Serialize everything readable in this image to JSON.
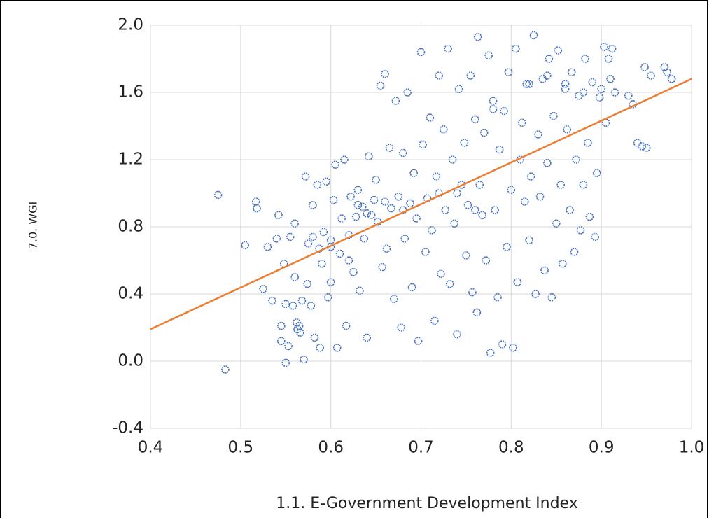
{
  "chart_data": {
    "type": "scatter",
    "x_label": "1.1. E-Government Development Index",
    "y_label": "7.0. WGI",
    "xlim": [
      0.4,
      1.0
    ],
    "ylim": [
      -0.4,
      2.0
    ],
    "xticks": [
      0.4,
      0.5,
      0.6,
      0.7,
      0.8,
      0.9,
      {
        "value": 1.0,
        "label": "1.0"
      }
    ],
    "yticks": [
      -0.4,
      {
        "value": 0,
        "label": "0.0"
      },
      0.4,
      0.8,
      1.2,
      1.6,
      {
        "value": 2.0,
        "label": "2.0"
      }
    ],
    "grid": true,
    "series": [
      {
        "color": "#4472c4",
        "x": [
          0.475,
          0.483,
          0.505,
          0.517,
          0.518,
          0.525,
          0.53,
          0.535,
          0.54,
          0.542,
          0.545,
          0.545,
          0.548,
          0.55,
          0.55,
          0.553,
          0.555,
          0.558,
          0.56,
          0.562,
          0.563,
          0.565,
          0.566,
          0.568,
          0.57,
          0.572,
          0.574,
          0.575,
          0.578,
          0.58,
          0.582,
          0.585,
          0.587,
          0.588,
          0.59,
          0.592,
          0.595,
          0.597,
          0.6,
          0.6,
          0.603,
          0.605,
          0.607,
          0.61,
          0.612,
          0.615,
          0.617,
          0.62,
          0.622,
          0.625,
          0.628,
          0.63,
          0.632,
          0.635,
          0.637,
          0.64,
          0.642,
          0.645,
          0.648,
          0.65,
          0.652,
          0.655,
          0.657,
          0.66,
          0.662,
          0.665,
          0.667,
          0.67,
          0.672,
          0.675,
          0.678,
          0.68,
          0.682,
          0.685,
          0.688,
          0.69,
          0.692,
          0.695,
          0.697,
          0.7,
          0.702,
          0.705,
          0.707,
          0.71,
          0.712,
          0.715,
          0.717,
          0.72,
          0.722,
          0.725,
          0.727,
          0.73,
          0.732,
          0.735,
          0.737,
          0.74,
          0.742,
          0.745,
          0.748,
          0.75,
          0.752,
          0.755,
          0.757,
          0.76,
          0.762,
          0.763,
          0.765,
          0.768,
          0.77,
          0.772,
          0.775,
          0.777,
          0.78,
          0.782,
          0.785,
          0.787,
          0.79,
          0.792,
          0.795,
          0.797,
          0.8,
          0.802,
          0.805,
          0.807,
          0.81,
          0.812,
          0.815,
          0.817,
          0.82,
          0.822,
          0.825,
          0.827,
          0.83,
          0.832,
          0.835,
          0.837,
          0.84,
          0.842,
          0.845,
          0.847,
          0.85,
          0.852,
          0.855,
          0.857,
          0.86,
          0.862,
          0.865,
          0.867,
          0.87,
          0.872,
          0.875,
          0.877,
          0.88,
          0.882,
          0.885,
          0.887,
          0.89,
          0.893,
          0.895,
          0.898,
          0.9,
          0.903,
          0.905,
          0.908,
          0.91,
          0.912,
          0.915,
          0.93,
          0.935,
          0.94,
          0.945,
          0.948,
          0.95,
          0.955,
          0.97,
          0.973,
          0.978,
          0.56,
          0.62,
          0.64,
          0.66,
          0.68,
          0.72,
          0.74,
          0.76,
          0.78,
          0.82,
          0.84,
          0.86,
          0.88,
          0.58,
          0.6,
          0.63
        ],
        "values": [
          0.99,
          -0.05,
          0.69,
          0.95,
          0.91,
          0.43,
          0.68,
          0.36,
          0.73,
          0.87,
          0.21,
          0.12,
          0.58,
          -0.01,
          0.34,
          0.09,
          0.74,
          0.33,
          0.82,
          0.23,
          0.19,
          0.21,
          0.17,
          0.36,
          0.01,
          1.1,
          0.46,
          0.7,
          0.33,
          0.93,
          0.14,
          1.05,
          0.67,
          0.08,
          0.58,
          0.77,
          1.07,
          0.38,
          0.72,
          0.47,
          0.96,
          1.17,
          0.08,
          0.64,
          0.85,
          1.2,
          0.21,
          0.75,
          0.98,
          0.53,
          0.86,
          1.02,
          0.42,
          0.92,
          0.73,
          0.14,
          1.22,
          0.87,
          0.96,
          1.08,
          0.83,
          1.64,
          0.56,
          1.71,
          0.67,
          1.27,
          0.91,
          0.37,
          1.55,
          0.98,
          0.2,
          1.24,
          0.73,
          1.6,
          0.94,
          0.44,
          1.12,
          0.85,
          0.12,
          1.84,
          1.29,
          0.65,
          0.97,
          1.45,
          0.78,
          0.24,
          1.1,
          1.7,
          0.52,
          1.38,
          0.9,
          1.86,
          0.46,
          1.2,
          0.82,
          0.16,
          1.62,
          1.05,
          1.3,
          0.63,
          0.93,
          1.7,
          0.41,
          1.44,
          0.29,
          1.93,
          1.05,
          0.87,
          1.36,
          0.6,
          1.82,
          0.05,
          1.55,
          0.9,
          0.38,
          1.26,
          0.1,
          1.49,
          0.68,
          1.72,
          1.02,
          0.08,
          1.86,
          0.47,
          1.2,
          1.42,
          0.95,
          1.65,
          0.72,
          1.1,
          1.94,
          0.4,
          1.35,
          0.98,
          1.68,
          0.54,
          1.18,
          1.8,
          0.38,
          1.46,
          0.82,
          1.85,
          1.05,
          0.58,
          1.62,
          1.38,
          0.9,
          1.72,
          0.65,
          1.2,
          1.58,
          0.78,
          1.05,
          1.8,
          1.3,
          0.86,
          1.66,
          0.74,
          1.12,
          1.57,
          1.62,
          1.87,
          1.42,
          1.8,
          1.68,
          1.86,
          1.6,
          1.58,
          1.53,
          1.3,
          1.28,
          1.75,
          1.27,
          1.7,
          1.75,
          1.72,
          1.68,
          0.5,
          0.6,
          0.88,
          0.95,
          0.9,
          1.0,
          1.0,
          0.9,
          1.5,
          1.65,
          1.7,
          1.65,
          1.6,
          0.74,
          0.68,
          0.93
        ]
      }
    ],
    "trendline": {
      "color": "#ed7d31",
      "x": [
        0.4,
        1.0
      ],
      "y": [
        0.19,
        1.68
      ]
    }
  }
}
